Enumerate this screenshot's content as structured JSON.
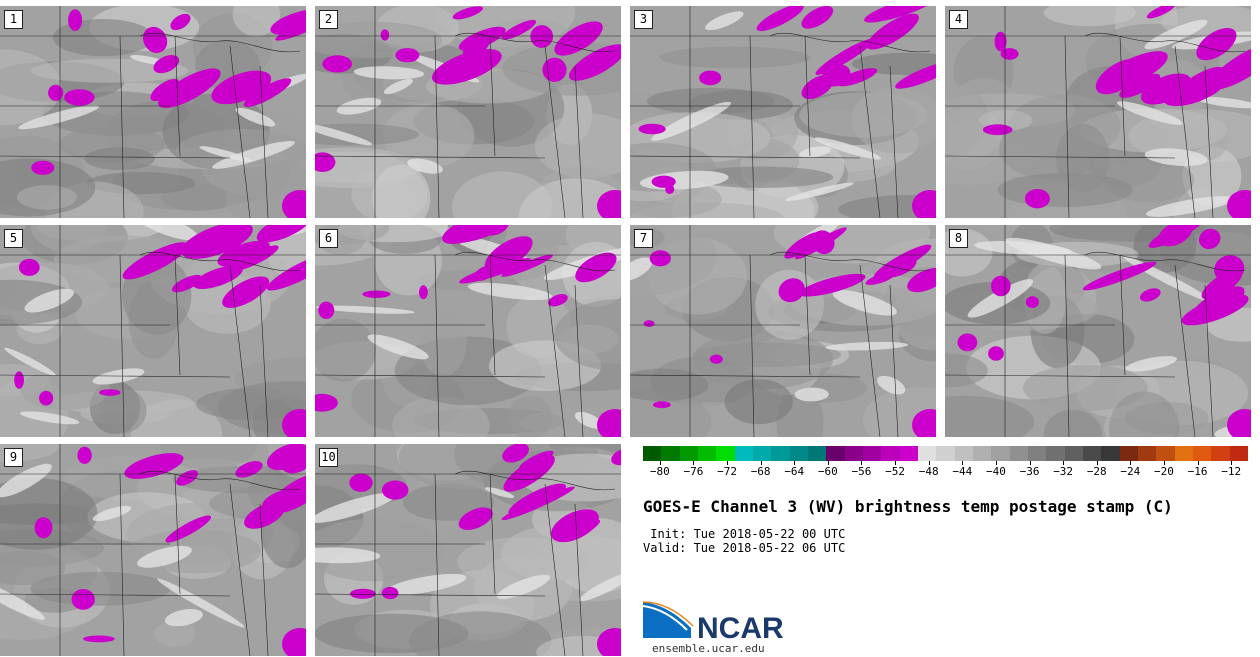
{
  "panels": [
    {
      "label": "1",
      "seed": 11
    },
    {
      "label": "2",
      "seed": 23
    },
    {
      "label": "3",
      "seed": 37
    },
    {
      "label": "4",
      "seed": 41
    },
    {
      "label": "5",
      "seed": 53
    },
    {
      "label": "6",
      "seed": 67
    },
    {
      "label": "7",
      "seed": 71
    },
    {
      "label": "8",
      "seed": 83
    },
    {
      "label": "9",
      "seed": 97
    },
    {
      "label": "10",
      "seed": 109
    }
  ],
  "colorbar": {
    "colors": [
      "#005a00",
      "#007a00",
      "#009a00",
      "#00bb00",
      "#00dd00",
      "#00bbbb",
      "#00aaaa",
      "#009999",
      "#008888",
      "#007777",
      "#6a006a",
      "#8a008a",
      "#a000a0",
      "#bb00bb",
      "#cc00cc",
      "#e0e0e0",
      "#d0d0d0",
      "#c0c0c0",
      "#b0b0b0",
      "#a0a0a0",
      "#909090",
      "#808080",
      "#707070",
      "#606060",
      "#4a4a4a",
      "#383838",
      "#7a2a10",
      "#a03a10",
      "#c05010",
      "#e07010",
      "#e05a10",
      "#d04010",
      "#c02a10"
    ],
    "ticks": [
      "−80",
      "−76",
      "−72",
      "−68",
      "−64",
      "−60",
      "−56",
      "−52",
      "−48",
      "−44",
      "−40",
      "−36",
      "−32",
      "−28",
      "−24",
      "−20",
      "−16",
      "−12"
    ],
    "tick_values": [
      -80,
      -76,
      -72,
      -68,
      -64,
      -60,
      -56,
      -52,
      -48,
      -44,
      -40,
      -36,
      -32,
      -28,
      -24,
      -20,
      -16,
      -12
    ],
    "min": -82,
    "max": -10
  },
  "title": "GOES-E Channel 3 (WV) brightness temp postage stamp (C)",
  "init": " Init: Tue 2018-05-22 00 UTC",
  "valid": "Valid: Tue 2018-05-22 06 UTC",
  "logo": {
    "text": "NCAR",
    "url": "ensemble.ucar.edu",
    "blue": "#0a6fc2"
  }
}
